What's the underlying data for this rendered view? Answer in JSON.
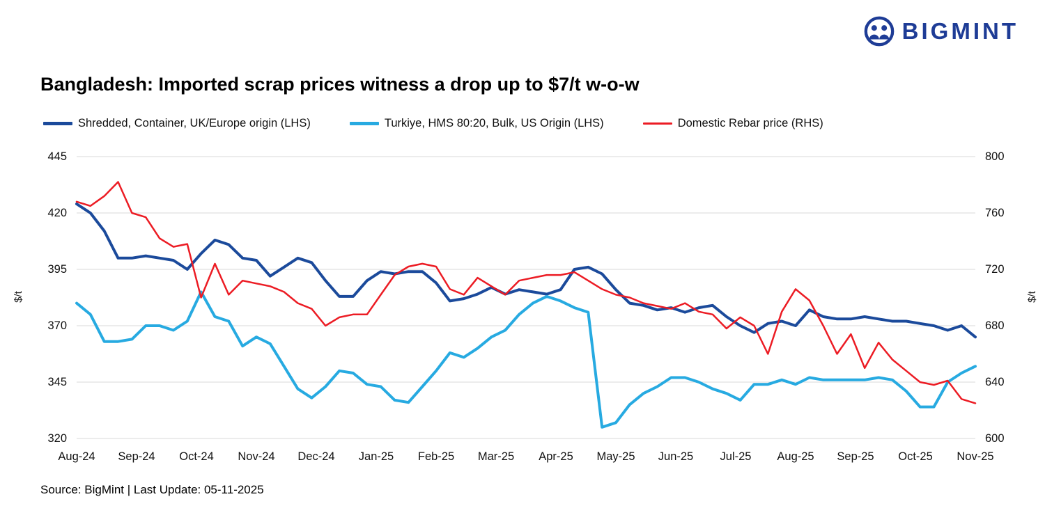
{
  "header": {
    "brand": "BIGMINT",
    "brand_color": "#1e3c96"
  },
  "title": "Bangladesh: Imported scrap prices witness a drop up to $7/t w-o-w",
  "source_line": "Source: BigMint | Last Update: 05-11-2025",
  "chart_data": {
    "type": "line",
    "title": "Bangladesh: Imported scrap prices witness a drop up to $7/t w-o-w",
    "grid": "horizontal-only",
    "grid_color": "#d9d9d9",
    "legend_position": "top",
    "ylabel_left": "$/t",
    "ylabel_right": "$/t",
    "left_axis": {
      "min": 320,
      "max": 445,
      "ticks": [
        320,
        345,
        370,
        395,
        420,
        445
      ]
    },
    "right_axis": {
      "min": 600,
      "max": 800,
      "ticks": [
        600,
        640,
        680,
        720,
        760,
        800
      ]
    },
    "x_labels": [
      "Aug-24",
      "Sep-24",
      "Oct-24",
      "Nov-24",
      "Dec-24",
      "Jan-25",
      "Feb-25",
      "Mar-25",
      "Apr-25",
      "May-25",
      "Jun-25",
      "Jul-25",
      "Aug-25",
      "Sep-25",
      "Oct-25",
      "Nov-25"
    ],
    "series": [
      {
        "name": "Shredded, Container, UK/Europe origin (LHS)",
        "axis": "left",
        "color": "#1b4a9b",
        "stroke_width": 4,
        "values": [
          424,
          420,
          412,
          400,
          400,
          401,
          400,
          399,
          395,
          402,
          408,
          406,
          400,
          399,
          392,
          396,
          400,
          398,
          390,
          383,
          383,
          390,
          394,
          393,
          394,
          394,
          389,
          381,
          382,
          384,
          387,
          384,
          386,
          385,
          384,
          386,
          395,
          396,
          393,
          386,
          380,
          379,
          377,
          378,
          376,
          378,
          379,
          374,
          370,
          367,
          371,
          372,
          370,
          377,
          374,
          373,
          373,
          374,
          373,
          372,
          372,
          371,
          370,
          368,
          370,
          365
        ]
      },
      {
        "name": "Turkiye, HMS 80:20, Bulk, US Origin (LHS)",
        "axis": "left",
        "color": "#27aae1",
        "stroke_width": 4,
        "values": [
          380,
          375,
          363,
          363,
          364,
          370,
          370,
          368,
          372,
          385,
          374,
          372,
          361,
          365,
          362,
          352,
          342,
          338,
          343,
          350,
          349,
          344,
          343,
          337,
          336,
          343,
          350,
          358,
          356,
          360,
          365,
          368,
          375,
          380,
          383,
          381,
          378,
          376,
          325,
          327,
          335,
          340,
          343,
          347,
          347,
          345,
          342,
          340,
          337,
          344,
          344,
          346,
          344,
          347,
          346,
          346,
          346,
          346,
          347,
          346,
          341,
          334,
          334,
          345,
          349,
          352
        ]
      },
      {
        "name": "Domestic Rebar price (RHS)",
        "axis": "right",
        "color": "#ec1c24",
        "stroke_width": 2.5,
        "values": [
          768,
          765,
          772,
          782,
          760,
          757,
          742,
          736,
          738,
          700,
          724,
          702,
          712,
          710,
          708,
          704,
          696,
          692,
          680,
          686,
          688,
          688,
          702,
          716,
          722,
          724,
          722,
          706,
          702,
          714,
          708,
          702,
          712,
          714,
          716,
          716,
          718,
          712,
          706,
          702,
          700,
          696,
          694,
          692,
          696,
          690,
          688,
          678,
          686,
          680,
          660,
          690,
          706,
          698,
          680,
          660,
          674,
          650,
          668,
          656,
          648,
          640,
          638,
          641,
          628,
          625
        ]
      }
    ]
  }
}
